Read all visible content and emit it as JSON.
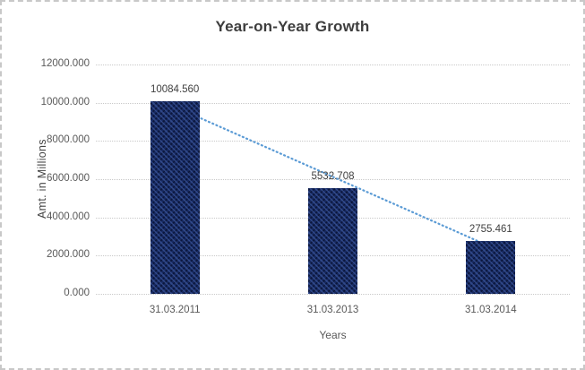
{
  "chart_data": {
    "type": "bar",
    "title": "Year-on-Year Growth",
    "xlabel": "Years",
    "ylabel": "Amt. in Millions",
    "categories": [
      "31.03.2011",
      "31.03.2013",
      "31.03.2014"
    ],
    "values": [
      10084.56,
      5532.708,
      2755.461
    ],
    "data_labels": [
      "10084.560",
      "5532.708",
      "2755.461"
    ],
    "yticks": [
      {
        "value": 0,
        "label": "0.000"
      },
      {
        "value": 2000,
        "label": "2000.000"
      },
      {
        "value": 4000,
        "label": "4000.000"
      },
      {
        "value": 6000,
        "label": "6000.000"
      },
      {
        "value": 8000,
        "label": "8000.000"
      },
      {
        "value": 10000,
        "label": "10000.000"
      },
      {
        "value": 12000,
        "label": "12000.000"
      }
    ],
    "ylim": [
      0,
      12000
    ],
    "grid": "horizontal-dotted",
    "legend": "none",
    "bar_color": "#17295f",
    "trendline": {
      "type": "linear",
      "style": "dotted",
      "color": "#5b9bd5"
    }
  }
}
